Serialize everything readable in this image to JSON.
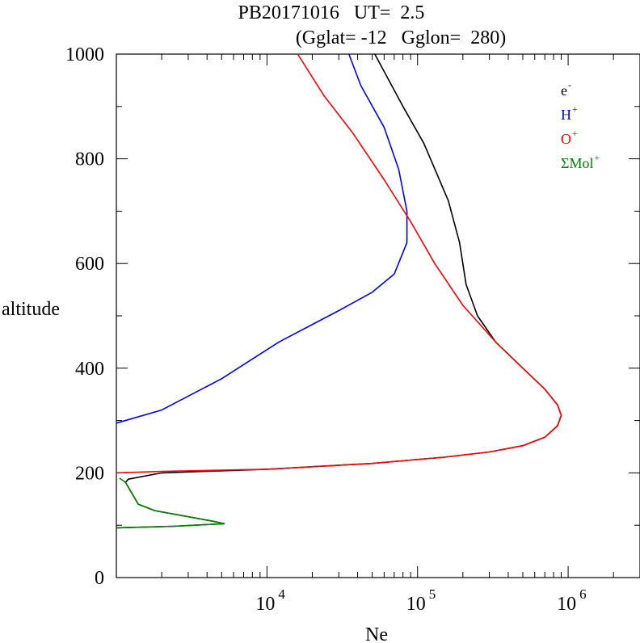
{
  "chart_data": {
    "type": "line",
    "title_line1": "PB20171016   UT=  2.5",
    "title_line2": "(Gglat= -12   Gglon=  280)",
    "xlabel": "Ne",
    "ylabel": "altitude",
    "xscale": "log",
    "xlim": [
      1000,
      3000000
    ],
    "ylim": [
      0,
      1000
    ],
    "y_ticks": [
      0,
      200,
      400,
      600,
      800,
      1000
    ],
    "y_tick_labels": [
      "0",
      "200",
      "400",
      "600",
      "800",
      "1000"
    ],
    "x_ticks": [
      10000,
      100000,
      1000000
    ],
    "x_tick_labels": [
      {
        "base": "10",
        "exp": "4"
      },
      {
        "base": "10",
        "exp": "5"
      },
      {
        "base": "10",
        "exp": "6"
      }
    ],
    "grid": false,
    "legend_position": "top-right",
    "series": [
      {
        "name": "e",
        "sup": "-",
        "color": "#000000",
        "points": [
          [
            1000,
            95
          ],
          [
            2400,
            98
          ],
          [
            5200,
            103
          ],
          [
            4500,
            107
          ],
          [
            1800,
            128
          ],
          [
            1400,
            140
          ],
          [
            1150,
            182
          ],
          [
            1200,
            188
          ],
          [
            2000,
            200
          ],
          [
            10000,
            207
          ],
          [
            50000,
            218
          ],
          [
            150000,
            230
          ],
          [
            300000,
            240
          ],
          [
            500000,
            252
          ],
          [
            700000,
            268
          ],
          [
            850000,
            290
          ],
          [
            900000,
            310
          ],
          [
            850000,
            330
          ],
          [
            700000,
            360
          ],
          [
            500000,
            400
          ],
          [
            330000,
            450
          ],
          [
            250000,
            500
          ],
          [
            210000,
            560
          ],
          [
            190000,
            640
          ],
          [
            160000,
            720
          ],
          [
            110000,
            830
          ],
          [
            80000,
            900
          ],
          [
            52000,
            1000
          ]
        ]
      },
      {
        "name": "H",
        "sup": "+",
        "color": "#0000ff",
        "points": [
          [
            1000,
            295
          ],
          [
            2000,
            320
          ],
          [
            5000,
            380
          ],
          [
            12000,
            450
          ],
          [
            30000,
            510
          ],
          [
            50000,
            545
          ],
          [
            70000,
            580
          ],
          [
            85000,
            640
          ],
          [
            85000,
            700
          ],
          [
            75000,
            780
          ],
          [
            60000,
            860
          ],
          [
            42000,
            940
          ],
          [
            35000,
            1000
          ]
        ]
      },
      {
        "name": "O",
        "sup": "+",
        "color": "#ff0000",
        "points": [
          [
            1000,
            200
          ],
          [
            2000,
            203
          ],
          [
            10000,
            207
          ],
          [
            50000,
            218
          ],
          [
            150000,
            230
          ],
          [
            300000,
            240
          ],
          [
            500000,
            252
          ],
          [
            700000,
            268
          ],
          [
            850000,
            290
          ],
          [
            900000,
            310
          ],
          [
            850000,
            330
          ],
          [
            700000,
            360
          ],
          [
            500000,
            400
          ],
          [
            330000,
            450
          ],
          [
            200000,
            520
          ],
          [
            130000,
            600
          ],
          [
            90000,
            680
          ],
          [
            60000,
            760
          ],
          [
            37000,
            850
          ],
          [
            24000,
            920
          ],
          [
            16000,
            1000
          ]
        ]
      },
      {
        "name": "ΣMol",
        "sup": "+",
        "color": "#008000",
        "points": [
          [
            1000,
            95
          ],
          [
            2400,
            98
          ],
          [
            5200,
            103
          ],
          [
            4500,
            107
          ],
          [
            1800,
            128
          ],
          [
            1400,
            140
          ],
          [
            1150,
            182
          ],
          [
            1050,
            190
          ]
        ]
      }
    ]
  }
}
